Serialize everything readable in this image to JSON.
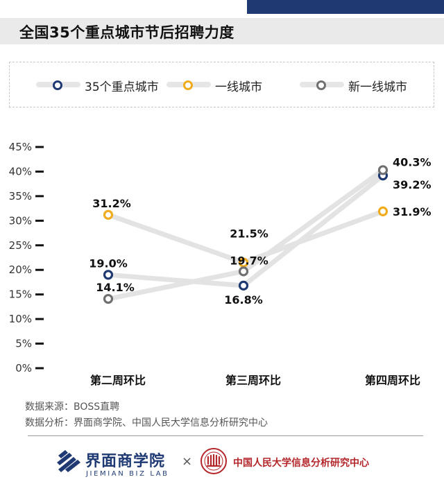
{
  "header": {
    "title": "全国35个重点城市节后招聘力度"
  },
  "legend": [
    {
      "label": "35个重点城市",
      "color": "#1f3a73"
    },
    {
      "label": "一线城市",
      "color": "#f0ac1c"
    },
    {
      "label": "新一线城市",
      "color": "#707070"
    }
  ],
  "chart_data": {
    "type": "line",
    "title": "全国35个重点城市节后招聘力度",
    "categories": [
      "第二周环比",
      "第三周环比",
      "第四周环比"
    ],
    "y_ticks": [
      "0%",
      "5%",
      "10%",
      "15%",
      "20%",
      "25%",
      "30%",
      "35%",
      "40%",
      "45%"
    ],
    "ylim": [
      0,
      45
    ],
    "grid": false,
    "legend_position": "top",
    "series": [
      {
        "name": "35个重点城市",
        "color": "#1f3a73",
        "values": [
          19.0,
          16.8,
          39.2
        ],
        "labels": [
          "19.0%",
          "16.8%",
          "39.2%"
        ]
      },
      {
        "name": "一线城市",
        "color": "#f0ac1c",
        "values": [
          31.2,
          21.5,
          31.9
        ],
        "labels": [
          "31.2%",
          "21.5%",
          "31.9%"
        ]
      },
      {
        "name": "新一线城市",
        "color": "#707070",
        "values": [
          14.1,
          19.7,
          40.3
        ],
        "labels": [
          "14.1%",
          "19.7%",
          "40.3%"
        ]
      }
    ]
  },
  "source": {
    "line1": "数据来源：BOSS直聘",
    "line2": "数据分析：界面商学院、中国人民大学信息分析研究中心"
  },
  "footer": {
    "brand_cn": "界面商学院",
    "brand_en": "JIEMIAN BIZ LAB",
    "times": "×",
    "center_name": "中国人民大学信息分析研究中心",
    "logo_icon": "jiemian-stripes-logo",
    "seal_icon": "renmin-university-seal"
  }
}
